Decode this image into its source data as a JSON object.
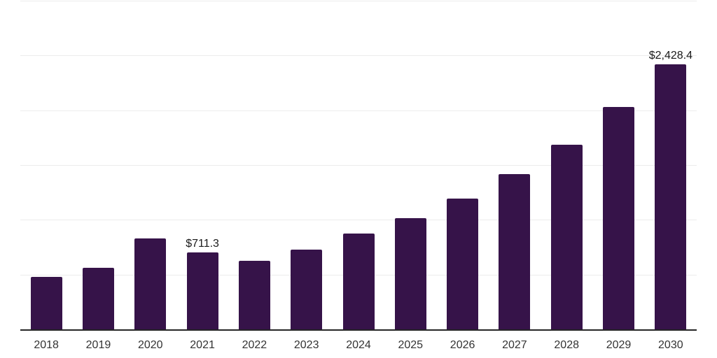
{
  "chart_data": {
    "type": "bar",
    "title": "",
    "xlabel": "",
    "ylabel": "",
    "categories": [
      "2018",
      "2019",
      "2020",
      "2021",
      "2022",
      "2023",
      "2024",
      "2025",
      "2026",
      "2027",
      "2028",
      "2029",
      "2030"
    ],
    "values": [
      485,
      565,
      838,
      711.3,
      635,
      737,
      878,
      1020,
      1200,
      1424,
      1694,
      2036,
      2428.4
    ],
    "data_labels": [
      {
        "index": 3,
        "category": "2021",
        "text": "$711.3"
      },
      {
        "index": 12,
        "category": "2030",
        "text": "$2,428.4"
      }
    ],
    "ylim": [
      0,
      3000
    ],
    "gridline_interval": 500,
    "grid": "horizontal-only",
    "legend": "none",
    "y_tick_labels_visible": false,
    "colors": {
      "bar": "#361349",
      "axis_line": "#262626",
      "gridline": "#ececec",
      "tick_label": "#333333",
      "data_label": "#1a1a1a",
      "background": "#ffffff"
    }
  }
}
